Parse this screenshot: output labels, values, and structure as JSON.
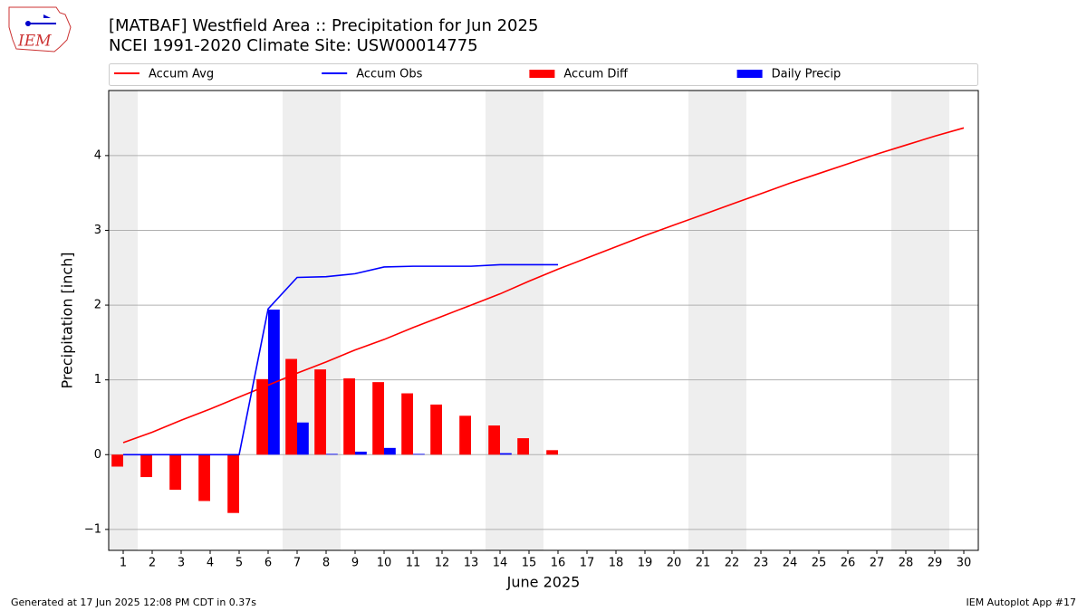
{
  "chart_data": {
    "type": "bar_line",
    "title": "[MATBAF] Westfield Area :: Precipitation for Jun 2025",
    "subtitle": "NCEI 1991-2020 Climate Site: USW00014775",
    "logo_text": "IEM",
    "xlabel": "June 2025",
    "ylabel": "Precipitation [inch]",
    "x": [
      1,
      2,
      3,
      4,
      5,
      6,
      7,
      8,
      9,
      10,
      11,
      12,
      13,
      14,
      15,
      16,
      17,
      18,
      19,
      20,
      21,
      22,
      23,
      24,
      25,
      26,
      27,
      28,
      29,
      30
    ],
    "xlim": [
      0.5,
      30.5
    ],
    "xticks": [
      1,
      2,
      3,
      4,
      5,
      6,
      7,
      8,
      9,
      10,
      11,
      12,
      13,
      14,
      15,
      16,
      17,
      18,
      19,
      20,
      21,
      22,
      23,
      24,
      25,
      26,
      27,
      28,
      29,
      30
    ],
    "ylim": [
      -1.28,
      4.87
    ],
    "yticks": [
      {
        "value": -1,
        "label": "−1"
      },
      0,
      1,
      2,
      3,
      4
    ],
    "grid": true,
    "legend": "top",
    "shaded_days": [
      1,
      7,
      8,
      14,
      15,
      21,
      22,
      28,
      29
    ],
    "shade_color": "#eeeeee",
    "series": [
      {
        "name": "Accum Avg",
        "type": "line",
        "color": "#ff0000",
        "values": [
          0.16,
          0.3,
          0.46,
          0.61,
          0.77,
          0.93,
          1.09,
          1.24,
          1.4,
          1.54,
          1.7,
          1.85,
          2.0,
          2.15,
          2.32,
          2.48,
          2.63,
          2.78,
          2.93,
          3.07,
          3.21,
          3.35,
          3.49,
          3.63,
          3.76,
          3.89,
          4.02,
          4.14,
          4.26,
          4.37
        ]
      },
      {
        "name": "Accum Obs",
        "type": "line",
        "color": "#0000ff",
        "values": [
          0,
          0,
          0,
          0,
          0,
          1.95,
          2.37,
          2.38,
          2.42,
          2.51,
          2.52,
          2.52,
          2.52,
          2.54,
          2.54,
          2.54,
          null,
          null,
          null,
          null,
          null,
          null,
          null,
          null,
          null,
          null,
          null,
          null,
          null,
          null
        ]
      },
      {
        "name": "Accum Diff",
        "type": "bar",
        "side": "left",
        "color": "#ff0000",
        "values": [
          -0.16,
          -0.3,
          -0.47,
          -0.62,
          -0.78,
          1.01,
          1.28,
          1.14,
          1.02,
          0.97,
          0.82,
          0.67,
          0.52,
          0.39,
          0.22,
          0.06,
          null,
          null,
          null,
          null,
          null,
          null,
          null,
          null,
          null,
          null,
          null,
          null,
          null,
          null
        ]
      },
      {
        "name": "Daily Precip",
        "type": "bar",
        "side": "right",
        "color": "#0000ff",
        "values": [
          0,
          0,
          0,
          0,
          0,
          1.94,
          0.43,
          0.01,
          0.04,
          0.09,
          0.01,
          0,
          0,
          0.02,
          0,
          0,
          null,
          null,
          null,
          null,
          null,
          null,
          null,
          null,
          null,
          null,
          null,
          null,
          null,
          null
        ]
      }
    ],
    "footer_left": "Generated at 17 Jun 2025 12:08 PM CDT in 0.37s",
    "footer_right": "IEM Autoplot App #17"
  }
}
